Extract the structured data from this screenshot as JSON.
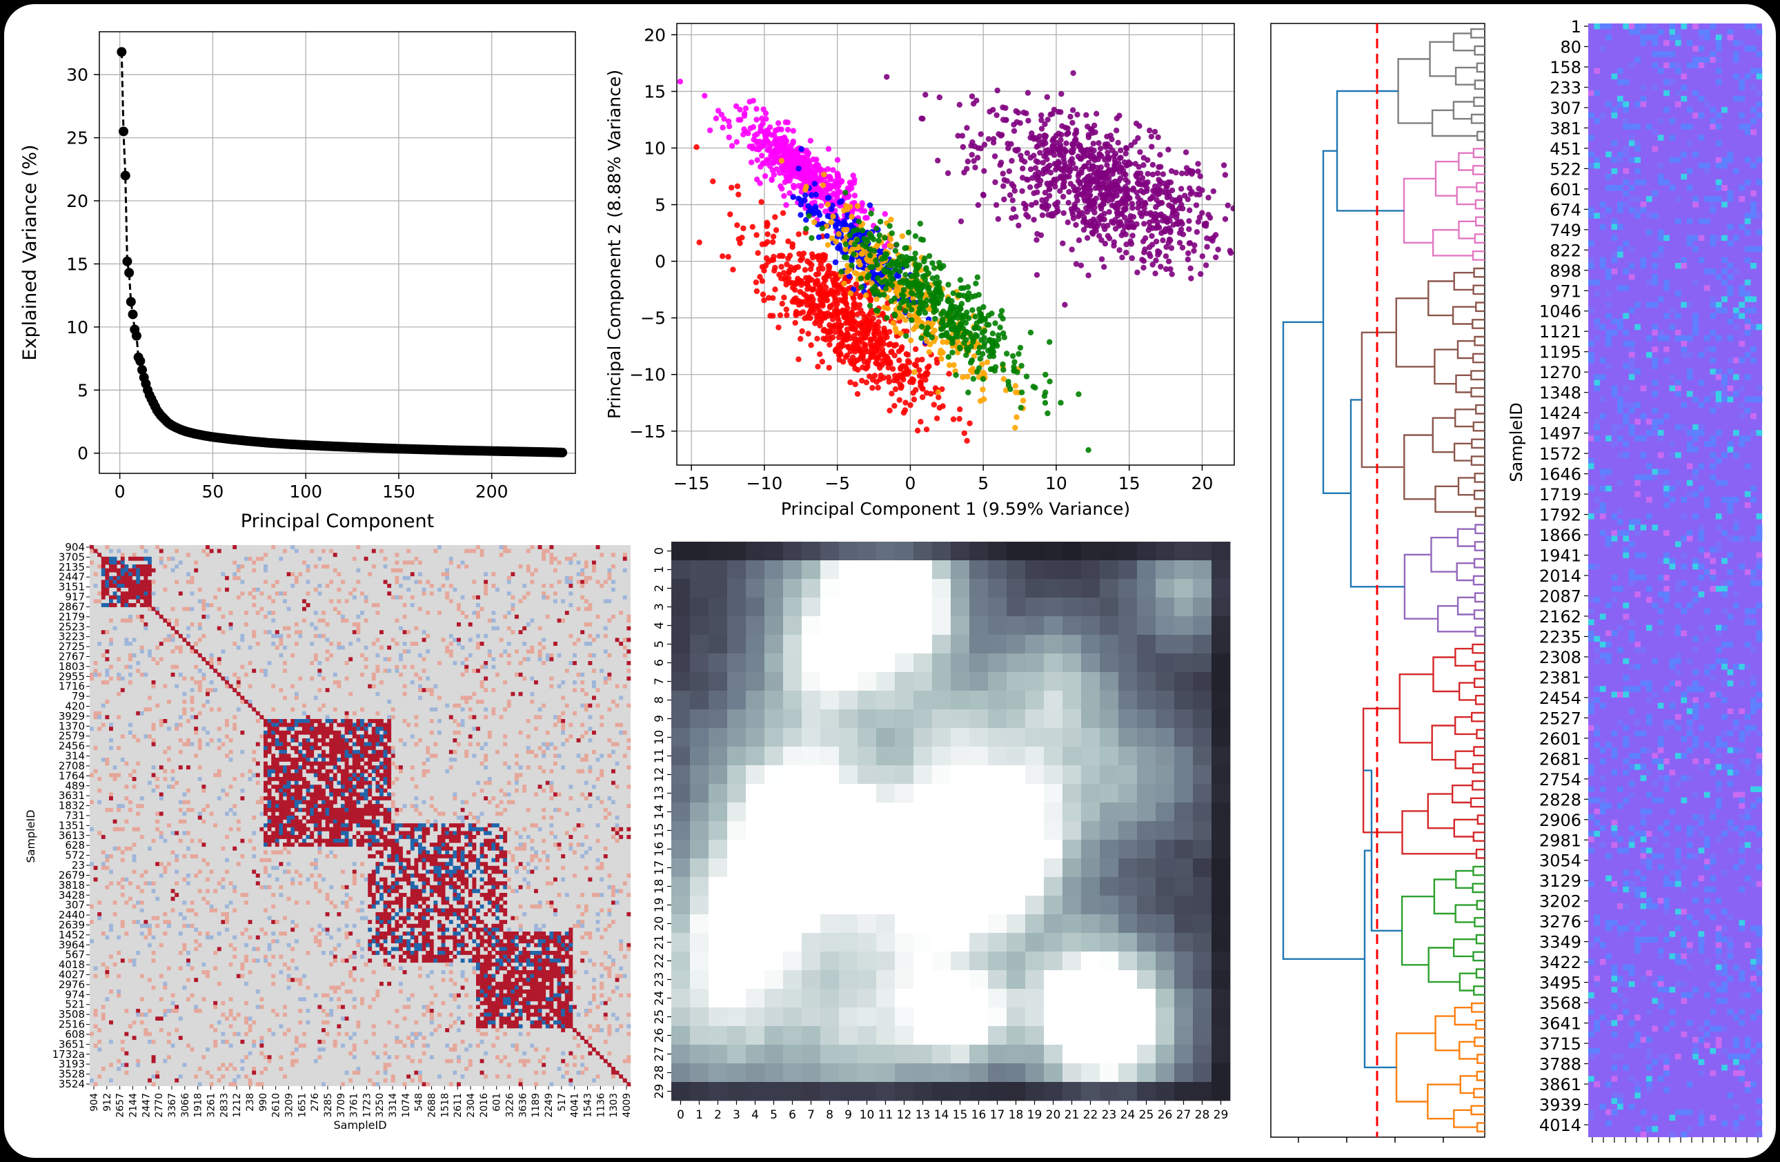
{
  "chart_data": [
    {
      "type": "line",
      "panel": "scree",
      "xlabel": "Principal Component",
      "ylabel": "Explained Variance (%)",
      "xticks": [
        0,
        50,
        100,
        150,
        200
      ],
      "yticks": [
        0,
        5,
        10,
        15,
        20,
        25,
        30
      ],
      "xlim": [
        -11,
        245
      ],
      "ylim": [
        -1.6,
        33.4
      ],
      "grid": true,
      "marker_color": "#000000",
      "points": [
        [
          1,
          31.8
        ],
        [
          2,
          25.5
        ],
        [
          3,
          22.0
        ],
        [
          4,
          15.2
        ],
        [
          5,
          14.3
        ],
        [
          6,
          12.0
        ],
        [
          7,
          11.0
        ],
        [
          8,
          9.8
        ],
        [
          9,
          9.3
        ],
        [
          10,
          7.6
        ],
        [
          11,
          7.3
        ],
        [
          12,
          6.6
        ],
        [
          13,
          6.0
        ],
        [
          14,
          5.5
        ],
        [
          15,
          5.0
        ],
        [
          16,
          4.6
        ],
        [
          17,
          4.3
        ],
        [
          18,
          4.0
        ],
        [
          19,
          3.7
        ],
        [
          20,
          3.4
        ],
        [
          22,
          3.0
        ],
        [
          24,
          2.7
        ],
        [
          26,
          2.4
        ],
        [
          28,
          2.2
        ],
        [
          30,
          2.05
        ],
        [
          33,
          1.85
        ],
        [
          36,
          1.7
        ],
        [
          40,
          1.55
        ],
        [
          45,
          1.4
        ],
        [
          50,
          1.28
        ],
        [
          60,
          1.1
        ],
        [
          70,
          0.95
        ],
        [
          80,
          0.82
        ],
        [
          90,
          0.72
        ],
        [
          100,
          0.64
        ],
        [
          110,
          0.57
        ],
        [
          120,
          0.51
        ],
        [
          130,
          0.45
        ],
        [
          140,
          0.4
        ],
        [
          150,
          0.35
        ],
        [
          160,
          0.31
        ],
        [
          170,
          0.27
        ],
        [
          180,
          0.23
        ],
        [
          190,
          0.2
        ],
        [
          200,
          0.17
        ],
        [
          210,
          0.14
        ],
        [
          220,
          0.11
        ],
        [
          230,
          0.08
        ],
        [
          238,
          0.05
        ]
      ]
    },
    {
      "type": "scatter",
      "panel": "pca",
      "xlabel": "Principal Component 1 (9.59% Variance)",
      "ylabel": "Principal Component 2 (8.88% Variance)",
      "xticks": [
        -15,
        -10,
        -5,
        0,
        5,
        10,
        15,
        20
      ],
      "yticks": [
        -15,
        -10,
        -5,
        0,
        5,
        10,
        15,
        20
      ],
      "xlim": [
        -16,
        22.2
      ],
      "ylim": [
        -18,
        21
      ],
      "grid": true,
      "series": [
        {
          "color": "#800080",
          "center": [
            13,
            6.5
          ],
          "spread": [
            4.2,
            3.4
          ],
          "rho": -0.55,
          "n": 900
        },
        {
          "color": "#ff00ff",
          "center": [
            -7.5,
            8
          ],
          "spread": [
            2.2,
            2.4
          ],
          "rho": -0.85,
          "n": 500
        },
        {
          "color": "#ff0000",
          "center": [
            -4.5,
            -5
          ],
          "spread": [
            3.0,
            3.8
          ],
          "rho": -0.8,
          "n": 700
        },
        {
          "color": "#0000ff",
          "center": [
            -3.5,
            1
          ],
          "spread": [
            2.0,
            2.5
          ],
          "rho": -0.85,
          "n": 250
        },
        {
          "color": "#ffa500",
          "center": [
            0,
            -3
          ],
          "spread": [
            3.0,
            4.0
          ],
          "rho": -0.85,
          "n": 300
        },
        {
          "color": "#008000",
          "center": [
            2,
            -4
          ],
          "spread": [
            3.2,
            3.5
          ],
          "rho": -0.85,
          "n": 450
        }
      ]
    },
    {
      "type": "heatmap",
      "panel": "correlation",
      "xlabel": "SampleID",
      "ylabel": "SampleID",
      "xtick_labels": [
        "904",
        "912",
        "2657",
        "2144",
        "2447",
        "2770",
        "3367",
        "3066",
        "1918",
        "3261",
        "2833",
        "1212",
        "238",
        "990",
        "2610",
        "3209",
        "1651",
        "276",
        "3285",
        "3709",
        "3761",
        "1723",
        "3250",
        "3314",
        "1074",
        "548",
        "2688",
        "1518",
        "2611",
        "2304",
        "2016",
        "601",
        "3226",
        "3636",
        "1189",
        "2249",
        "517",
        "4041",
        "1543",
        "1136",
        "1303",
        "4009"
      ],
      "ytick_labels": [
        "904",
        "3705",
        "2135",
        "2447",
        "3151",
        "917",
        "2867",
        "2179",
        "2523",
        "3223",
        "2725",
        "2767",
        "1803",
        "2955",
        "1716",
        "79",
        "420",
        "3929",
        "1370",
        "2579",
        "2456",
        "314",
        "2708",
        "1764",
        "489",
        "3631",
        "1832",
        "731",
        "1351",
        "3613",
        "628",
        "572",
        "23",
        "2679",
        "3818",
        "3428",
        "307",
        "2440",
        "2639",
        "1452",
        "3964",
        "567",
        "4018",
        "4027",
        "2976",
        "974",
        "521",
        "3508",
        "2516",
        "608",
        "3651",
        "1732a",
        "3193",
        "3528",
        "3524"
      ],
      "colors": {
        "high": "#b2182b",
        "low": "#2166ac",
        "mid": "#d9d9d9"
      }
    },
    {
      "type": "heatmap",
      "panel": "grayscale-grid",
      "xtick_labels": [
        "0",
        "1",
        "2",
        "3",
        "4",
        "5",
        "6",
        "7",
        "8",
        "9",
        "10",
        "11",
        "12",
        "13",
        "14",
        "15",
        "16",
        "17",
        "18",
        "19",
        "20",
        "21",
        "22",
        "23",
        "24",
        "25",
        "26",
        "27",
        "28",
        "29"
      ],
      "ytick_labels": [
        "0",
        "1",
        "2",
        "3",
        "4",
        "5",
        "6",
        "7",
        "8",
        "9",
        "10",
        "11",
        "12",
        "13",
        "14",
        "15",
        "16",
        "17",
        "18",
        "19",
        "20",
        "21",
        "22",
        "23",
        "24",
        "25",
        "26",
        "27",
        "28",
        "29"
      ],
      "blobs": [
        [
          10,
          2,
          3.5,
          0.9
        ],
        [
          12,
          3,
          2,
          0.8
        ],
        [
          15,
          16,
          3,
          1.0
        ],
        [
          16,
          17,
          2.5,
          0.95
        ],
        [
          15,
          25,
          2,
          1.0
        ],
        [
          22,
          24,
          3,
          0.9
        ],
        [
          23,
          26,
          2.5,
          0.85
        ],
        [
          6,
          13,
          4,
          0.75
        ],
        [
          7,
          16,
          3,
          0.8
        ],
        [
          3,
          20,
          3,
          0.75
        ],
        [
          2,
          25,
          3.5,
          0.7
        ],
        [
          10,
          26,
          3,
          0.7
        ],
        [
          19,
          13,
          3.5,
          0.65
        ],
        [
          20,
          7,
          2.5,
          0.6
        ],
        [
          27,
          2,
          2,
          0.6
        ],
        [
          8,
          6,
          2.5,
          0.55
        ],
        [
          14,
          9,
          2,
          0.45
        ],
        [
          25,
          12,
          2.5,
          0.4
        ],
        [
          12,
          21,
          2.5,
          0.45
        ]
      ],
      "colormap": [
        "#0c0c0f",
        "#3a3b4c",
        "#6f7e8e",
        "#a6bcbd",
        "#ffffff"
      ]
    },
    {
      "type": "dendrogram",
      "panel": "clustering",
      "cut_line_color": "#ff0000",
      "link_color": "#1f77b4",
      "clusters": [
        {
          "color": "#7f7f7f",
          "leaves": 14
        },
        {
          "color": "#e377c2",
          "leaves": 14
        },
        {
          "color": "#8c564b",
          "leaves": 30
        },
        {
          "color": "#9467bd",
          "leaves": 14
        },
        {
          "color": "#d62728",
          "leaves": 26
        },
        {
          "color": "#2ca02c",
          "leaves": 16
        },
        {
          "color": "#ff7f0e",
          "leaves": 16
        }
      ]
    },
    {
      "type": "heatmap",
      "panel": "sample-features",
      "ylabel": "SampleID",
      "ytick_labels": [
        "1",
        "80",
        "158",
        "233",
        "307",
        "381",
        "451",
        "522",
        "601",
        "674",
        "749",
        "822",
        "898",
        "971",
        "1046",
        "1121",
        "1195",
        "1270",
        "1348",
        "1424",
        "1497",
        "1572",
        "1646",
        "1719",
        "1792",
        "1866",
        "1941",
        "2014",
        "2087",
        "2162",
        "2235",
        "2308",
        "2381",
        "2454",
        "2527",
        "2601",
        "2681",
        "2754",
        "2828",
        "2906",
        "2981",
        "3054",
        "3129",
        "3202",
        "3276",
        "3349",
        "3422",
        "3495",
        "3568",
        "3641",
        "3715",
        "3788",
        "3861",
        "3939",
        "4014"
      ],
      "colors": {
        "base": "#8a63f5",
        "alt": "#5f80ff",
        "accent": "#3ad0e6",
        "hot": "#c86bf0"
      }
    }
  ]
}
